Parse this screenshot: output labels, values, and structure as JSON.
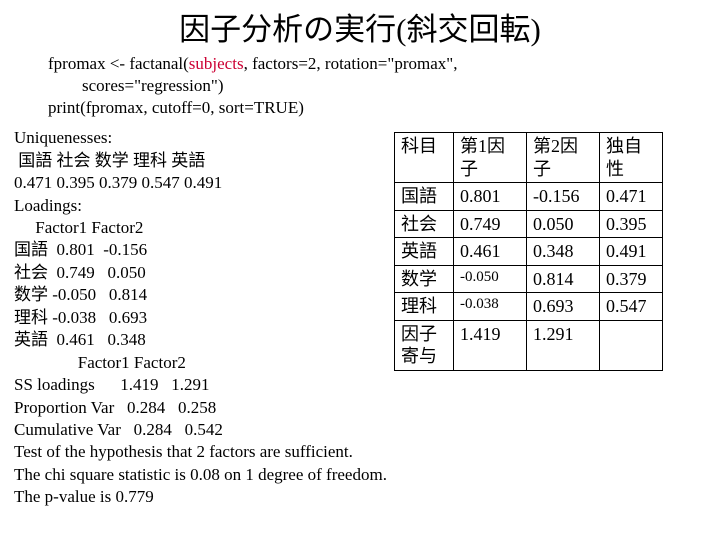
{
  "title": "因子分析の実行(斜交回転)",
  "code": {
    "line1a": "fpromax <- factanal(",
    "line1_subjects": "subjects",
    "line1b": ", factors=2, rotation=\"promax\",",
    "line2": "scores=\"regression\")",
    "line3": "print(fpromax, cutoff=0, sort=TRUE)"
  },
  "out": {
    "l1": "Uniquenesses:",
    "l2": " 国語 社会 数学 理科 英語",
    "l3": "0.471 0.395 0.379 0.547 0.491",
    "l4": "Loadings:",
    "l5": "     Factor1 Factor2",
    "l6": "国語  0.801  -0.156",
    "l7": "社会  0.749   0.050",
    "l8": "数学 -0.050   0.814",
    "l9": "理科 -0.038   0.693",
    "l10": "英語  0.461   0.348",
    "l11": "               Factor1 Factor2",
    "l12": "SS loadings      1.419   1.291",
    "l13": "Proportion Var   0.284   0.258",
    "l14": "Cumulative Var   0.284   0.542",
    "l15": "Test of the hypothesis that 2 factors are sufficient.",
    "l16": "The chi square statistic is 0.08 on 1 degree of freedom.",
    "l17": "The p-value is 0.779"
  },
  "table": {
    "h0": "科目",
    "h1": "第1因子",
    "h2": "第2因子",
    "h3": "独自性",
    "rows": [
      {
        "s": "国語",
        "f1": "0.801",
        "f2": "-0.156",
        "u": "0.471",
        "small": false
      },
      {
        "s": "社会",
        "f1": "0.749",
        "f2": "0.050",
        "u": "0.395",
        "small": false
      },
      {
        "s": "英語",
        "f1": "0.461",
        "f2": "0.348",
        "u": "0.491",
        "small": false
      },
      {
        "s": "数学",
        "f1": "-0.050",
        "f2": "0.814",
        "u": "0.379",
        "small": true
      },
      {
        "s": "理科",
        "f1": "-0.038",
        "f2": "0.693",
        "u": "0.547",
        "small": true
      }
    ],
    "foot": {
      "s": "因子寄与",
      "f1": "1.419",
      "f2": "1.291",
      "u": ""
    }
  }
}
